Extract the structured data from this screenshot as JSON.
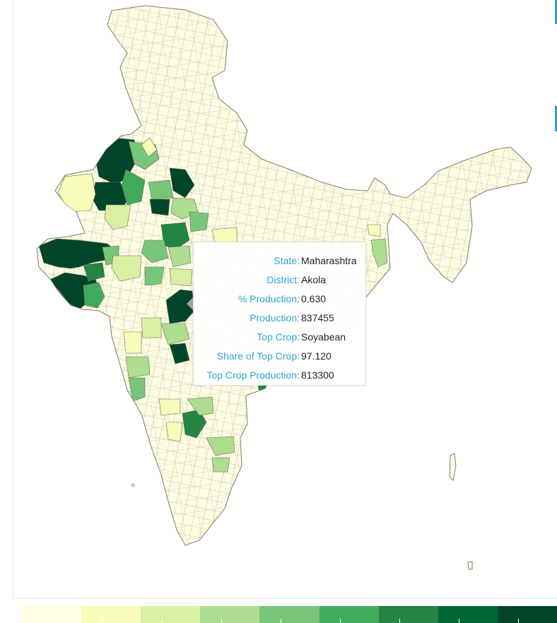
{
  "tooltip": {
    "rows": [
      {
        "label": "State:",
        "value": "Maharashtra"
      },
      {
        "label": "District:",
        "value": "Akola"
      },
      {
        "label": "% Production:",
        "value": "0.630"
      },
      {
        "label": "Production:",
        "value": "837455"
      },
      {
        "label": "Top Crop:",
        "value": "Soyabean"
      },
      {
        "label": "Share of Top Crop:",
        "value": "97.120"
      },
      {
        "label": "Top Crop Production:",
        "value": "813300"
      }
    ]
  },
  "colors": {
    "base": "#fdfde3",
    "border": "#8a8a7a",
    "tooltip_label": "#2aa6d1",
    "accent": "#2aa6bf"
  },
  "legend": {
    "swatches": [
      "#ffffe5",
      "#f7fcb9",
      "#d9f0a3",
      "#addd8e",
      "#78c679",
      "#41ab5d",
      "#238443",
      "#006837",
      "#004529"
    ]
  }
}
